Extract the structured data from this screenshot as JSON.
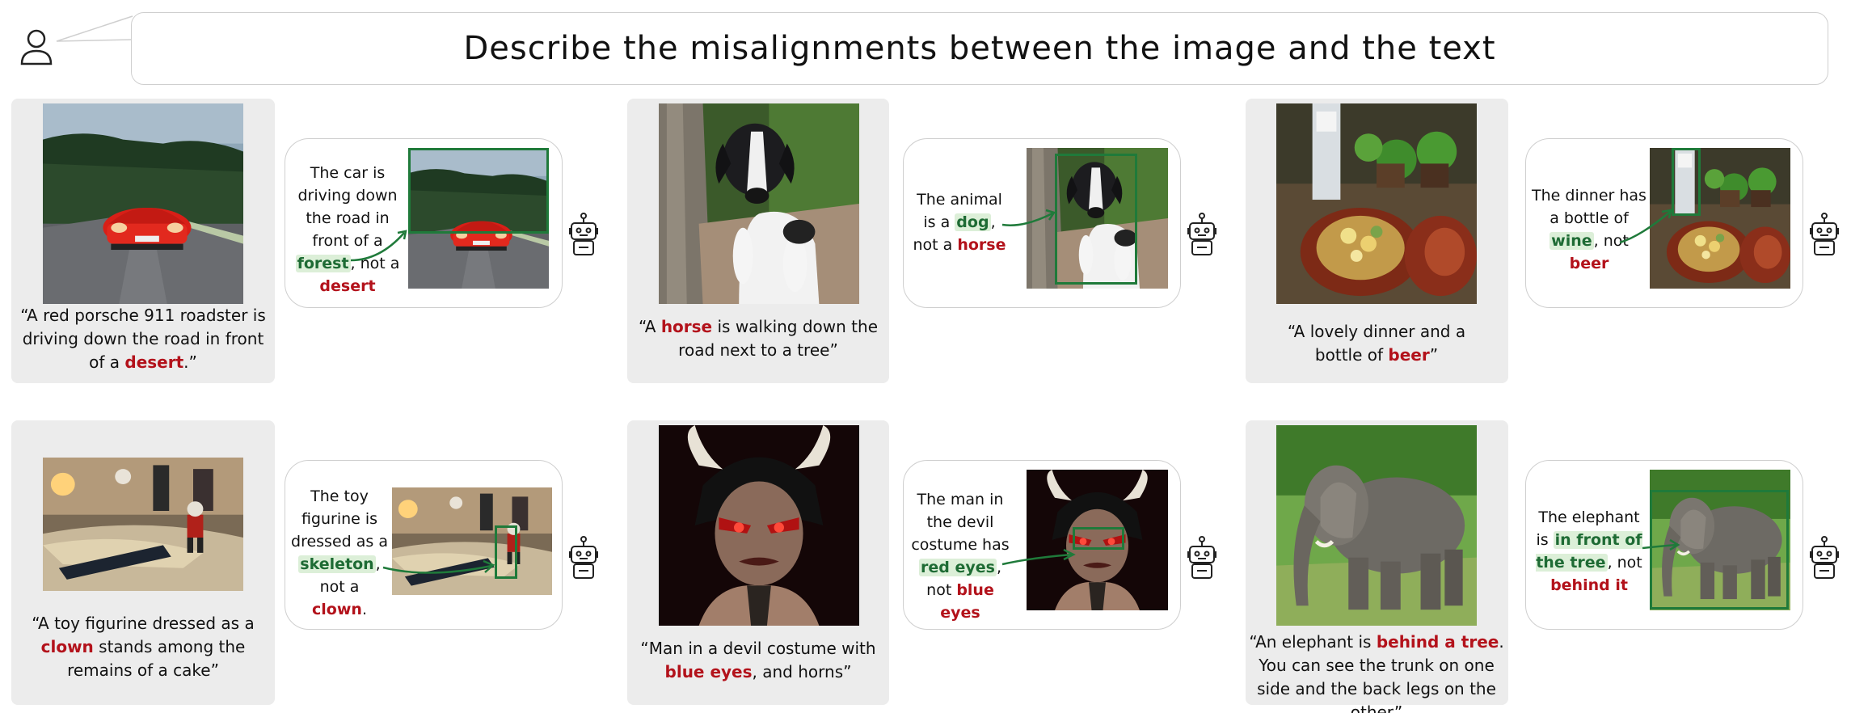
{
  "prompt": "Describe the misalignments between the image and the text",
  "colors": {
    "wrong": "#b3121b",
    "right": "#1e6b34",
    "panel": "#ececec",
    "bbox": "#1f7a3a"
  },
  "examples": [
    {
      "caption_pre": "“A red porsche 911 roadster is driving down the road in front of a ",
      "caption_bad": "desert",
      "caption_post": ".”",
      "answer_pre": "The car is driving down the road in front of a ",
      "answer_good": "forest",
      "answer_mid": ", not a ",
      "answer_bad": "desert",
      "answer_post": ""
    },
    {
      "caption_pre": "“A ",
      "caption_bad": "horse",
      "caption_post": " is walking down the road next to a tree”",
      "answer_pre": "The animal is a ",
      "answer_good": "dog",
      "answer_mid": ", not a ",
      "answer_bad": "horse",
      "answer_post": ""
    },
    {
      "caption_pre": "“A lovely dinner and a bottle of ",
      "caption_bad": "beer",
      "caption_post": "”",
      "answer_pre": "The dinner has a bottle of ",
      "answer_good": "wine",
      "answer_mid": ", not ",
      "answer_bad": "beer",
      "answer_post": ""
    },
    {
      "caption_pre": "“A toy figurine dressed as a ",
      "caption_bad": "clown",
      "caption_post": " stands among the remains of a cake”",
      "answer_pre": "The toy figurine is dressed as a ",
      "answer_good": "skeleton",
      "answer_mid": ", not a ",
      "answer_bad": "clown",
      "answer_post": "."
    },
    {
      "caption_pre": "“Man in a devil costume with ",
      "caption_bad": "blue eyes",
      "caption_post": ", and horns”",
      "answer_pre": "The man in the devil costume has ",
      "answer_good": "red eyes",
      "answer_mid": ", not ",
      "answer_bad": "blue eyes",
      "answer_post": ""
    },
    {
      "caption_pre": "“An elephant is ",
      "caption_bad": "behind a tree",
      "caption_post": ". You can see the trunk on one side and the back legs on the other”",
      "answer_pre": "The elephant is ",
      "answer_good": "in front of the tree",
      "answer_mid": ", not ",
      "answer_bad": "behind it",
      "answer_post": ""
    }
  ]
}
